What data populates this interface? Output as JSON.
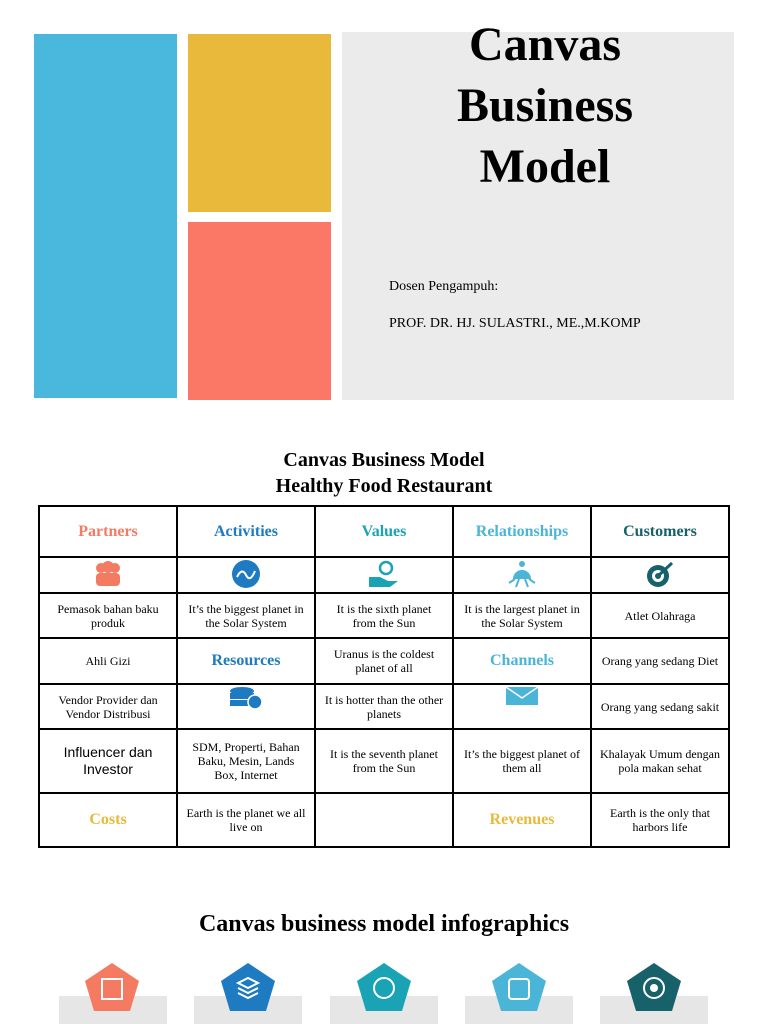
{
  "cover": {
    "title": "Canvas Business Model",
    "lecturer_label": "Dosen Pengampuh:",
    "lecturer_name": "PROF. DR. HJ. SULASTRI., ME.,M.KOMP"
  },
  "canvas": {
    "title": "Canvas Business Model",
    "subtitle": "Healthy Food Restaurant",
    "headers": [
      "Partners",
      "Activities",
      "Values",
      "Relationships",
      "Customers"
    ],
    "resources": "Resources",
    "channels": "Channels",
    "costs": "Costs",
    "revenues": "Revenues",
    "partners": [
      "Pemasok bahan baku produk",
      "Ahli Gizi",
      "Vendor Provider dan Vendor Distribusi",
      "Influencer dan Investor"
    ],
    "activities": [
      "It’s the biggest planet in the Solar System"
    ],
    "resources_items": [
      "SDM, Properti, Bahan Baku, Mesin, Lands Box, Internet"
    ],
    "values": [
      "It is the sixth planet from the Sun",
      "Uranus is the coldest planet of all",
      "It is hotter than the other planets",
      "It is the seventh planet from the Sun"
    ],
    "relationships": [
      "It is the largest planet in the Solar System"
    ],
    "channels_items": [
      "It’s the biggest planet of them all"
    ],
    "customers": [
      "Atlet Olahraga",
      "Orang yang sedang Diet",
      "Orang yang sedang sakit",
      "Khalayak Umum dengan pola makan sehat"
    ],
    "costs_items": [
      "Earth is the planet we all live on"
    ],
    "revenues_items": [
      "Earth is the only that harbors life"
    ]
  },
  "infographics": {
    "title": "Canvas business model infographics"
  }
}
